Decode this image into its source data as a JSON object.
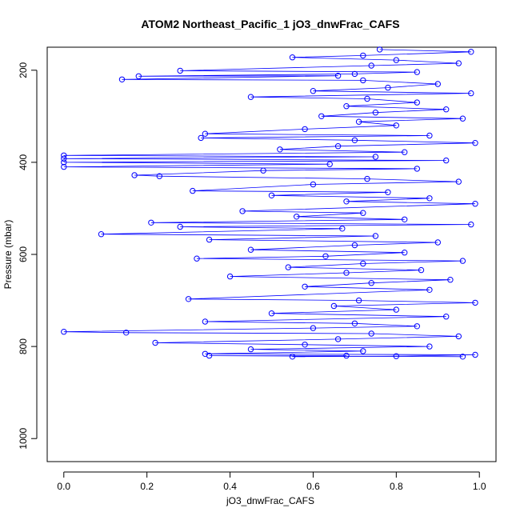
{
  "chart_data": {
    "type": "scatter",
    "title": "ATOM2 Northeast_Pacific_1 jO3_dnwFrac_CAFS",
    "xlabel": "jO3_dnwFrac_CAFS",
    "ylabel": "Pressure (mbar)",
    "xlim": [
      -0.04,
      1.04
    ],
    "ylim": [
      1050,
      150
    ],
    "y_reversed": true,
    "x_ticks": [
      0.0,
      0.2,
      0.4,
      0.6,
      0.8,
      1.0
    ],
    "x_tick_labels": [
      "0.0",
      "0.2",
      "0.4",
      "0.6",
      "0.8",
      "1.0"
    ],
    "y_ticks": [
      200,
      400,
      600,
      800,
      1000
    ],
    "y_tick_labels": [
      "200",
      "400",
      "600",
      "800",
      "1000"
    ],
    "grid": false,
    "legend": "none",
    "series_color": "#0000ff",
    "marker": "open-circle",
    "connected_by_lines": true,
    "series": [
      {
        "points": [
          [
            0.76,
            155
          ],
          [
            0.98,
            160
          ],
          [
            0.72,
            168
          ],
          [
            0.55,
            172
          ],
          [
            0.8,
            178
          ],
          [
            0.95,
            185
          ],
          [
            0.74,
            190
          ],
          [
            0.28,
            201
          ],
          [
            0.85,
            204
          ],
          [
            0.7,
            208
          ],
          [
            0.18,
            213
          ],
          [
            0.66,
            212
          ],
          [
            0.14,
            220
          ],
          [
            0.72,
            222
          ],
          [
            0.9,
            230
          ],
          [
            0.78,
            238
          ],
          [
            0.6,
            245
          ],
          [
            0.98,
            250
          ],
          [
            0.45,
            258
          ],
          [
            0.73,
            262
          ],
          [
            0.85,
            270
          ],
          [
            0.68,
            278
          ],
          [
            0.92,
            285
          ],
          [
            0.75,
            292
          ],
          [
            0.62,
            300
          ],
          [
            0.96,
            305
          ],
          [
            0.71,
            312
          ],
          [
            0.8,
            320
          ],
          [
            0.58,
            328
          ],
          [
            0.34,
            338
          ],
          [
            0.88,
            342
          ],
          [
            0.33,
            347
          ],
          [
            0.7,
            352
          ],
          [
            0.99,
            358
          ],
          [
            0.66,
            365
          ],
          [
            0.52,
            372
          ],
          [
            0.82,
            378
          ],
          [
            0.0,
            385
          ],
          [
            0.75,
            388
          ],
          [
            0.0,
            392
          ],
          [
            0.92,
            396
          ],
          [
            0.0,
            400
          ],
          [
            0.64,
            404
          ],
          [
            0.0,
            410
          ],
          [
            0.85,
            414
          ],
          [
            0.48,
            418
          ],
          [
            0.17,
            428
          ],
          [
            0.23,
            430
          ],
          [
            0.73,
            436
          ],
          [
            0.95,
            442
          ],
          [
            0.6,
            448
          ],
          [
            0.31,
            462
          ],
          [
            0.78,
            465
          ],
          [
            0.5,
            472
          ],
          [
            0.88,
            478
          ],
          [
            0.68,
            485
          ],
          [
            0.99,
            490
          ],
          [
            0.43,
            506
          ],
          [
            0.72,
            510
          ],
          [
            0.56,
            518
          ],
          [
            0.82,
            524
          ],
          [
            0.21,
            531
          ],
          [
            0.98,
            535
          ],
          [
            0.28,
            540
          ],
          [
            0.67,
            544
          ],
          [
            0.09,
            556
          ],
          [
            0.75,
            560
          ],
          [
            0.35,
            568
          ],
          [
            0.9,
            574
          ],
          [
            0.7,
            580
          ],
          [
            0.45,
            590
          ],
          [
            0.82,
            596
          ],
          [
            0.63,
            604
          ],
          [
            0.32,
            609
          ],
          [
            0.96,
            614
          ],
          [
            0.72,
            620
          ],
          [
            0.54,
            628
          ],
          [
            0.86,
            634
          ],
          [
            0.68,
            640
          ],
          [
            0.4,
            648
          ],
          [
            0.93,
            655
          ],
          [
            0.74,
            662
          ],
          [
            0.58,
            670
          ],
          [
            0.88,
            677
          ],
          [
            0.3,
            697
          ],
          [
            0.71,
            700
          ],
          [
            0.99,
            705
          ],
          [
            0.65,
            712
          ],
          [
            0.8,
            720
          ],
          [
            0.5,
            728
          ],
          [
            0.92,
            735
          ],
          [
            0.34,
            746
          ],
          [
            0.7,
            750
          ],
          [
            0.85,
            756
          ],
          [
            0.6,
            760
          ],
          [
            0.0,
            768
          ],
          [
            0.15,
            770
          ],
          [
            0.74,
            772
          ],
          [
            0.95,
            778
          ],
          [
            0.66,
            784
          ],
          [
            0.22,
            792
          ],
          [
            0.58,
            796
          ],
          [
            0.88,
            800
          ],
          [
            0.45,
            806
          ],
          [
            0.72,
            810
          ],
          [
            0.34,
            816
          ],
          [
            0.99,
            818
          ],
          [
            0.8,
            821
          ],
          [
            0.55,
            822
          ],
          [
            0.68,
            820
          ],
          [
            0.35,
            820
          ],
          [
            0.96,
            822
          ]
        ]
      }
    ]
  }
}
